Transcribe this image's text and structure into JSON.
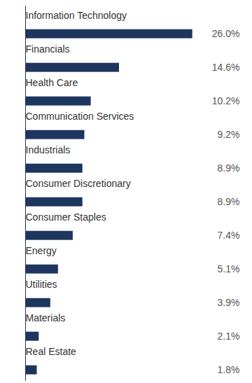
{
  "chart_data": {
    "type": "bar",
    "orientation": "horizontal",
    "categories": [
      "Information Technology",
      "Financials",
      "Health Care",
      "Communication Services",
      "Industrials",
      "Consumer Discretionary",
      "Consumer Staples",
      "Energy",
      "Utilities",
      "Materials",
      "Real Estate"
    ],
    "values": [
      26.0,
      14.6,
      10.2,
      9.2,
      8.9,
      8.9,
      7.4,
      5.1,
      3.9,
      2.1,
      1.8
    ],
    "value_labels": [
      "26.0%",
      "14.6%",
      "10.2%",
      "9.2%",
      "8.9%",
      "8.9%",
      "7.4%",
      "5.1%",
      "3.9%",
      "2.1%",
      "1.8%"
    ],
    "color": "#1e3560",
    "xlim": [
      0,
      33.333333333333336
    ],
    "data_labels": true,
    "tick_labels": false,
    "grid": false
  }
}
